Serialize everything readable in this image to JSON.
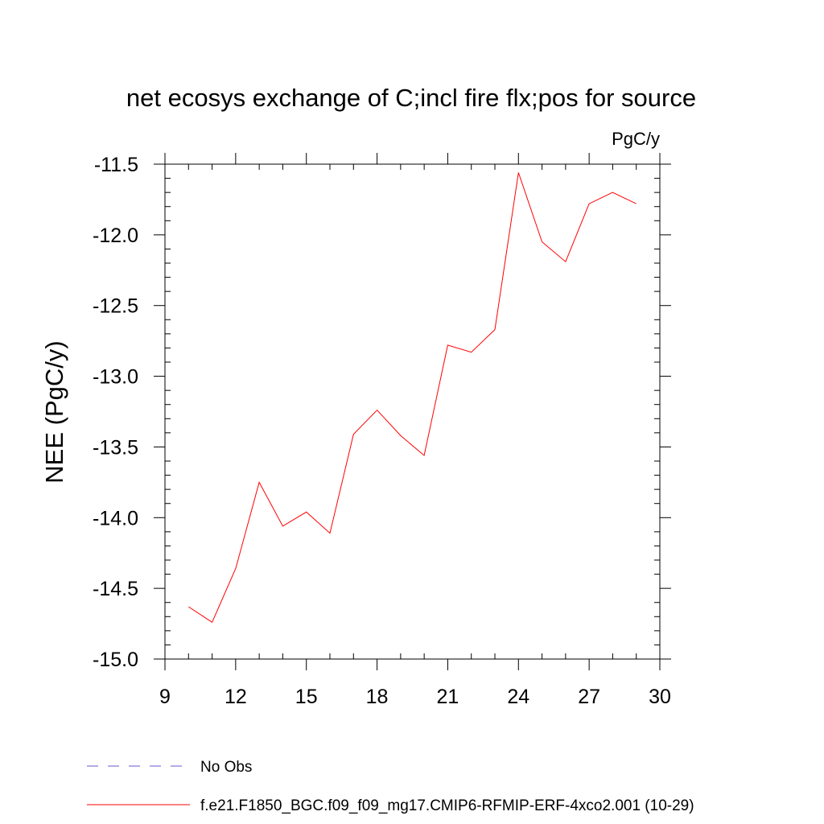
{
  "chart_data": {
    "type": "line",
    "title": "net ecosys exchange of C;incl fire flx;pos for source",
    "units_label": "PgC/y",
    "ylabel": "NEE  (PgC/y)",
    "xlabel": "",
    "xlim": [
      9,
      30
    ],
    "ylim": [
      -15.0,
      -11.5
    ],
    "x_ticks": [
      9,
      12,
      15,
      18,
      21,
      24,
      27,
      30
    ],
    "x_tick_labels": [
      "9",
      "12",
      "15",
      "18",
      "21",
      "24",
      "27",
      "30"
    ],
    "y_ticks": [
      -15.0,
      -14.5,
      -14.0,
      -13.5,
      -13.0,
      -12.5,
      -12.0,
      -11.5
    ],
    "y_tick_labels": [
      "-15.0",
      "-14.5",
      "-14.0",
      "-13.5",
      "-13.0",
      "-12.5",
      "-12.0",
      "-11.5"
    ],
    "grid": false,
    "series": [
      {
        "name": "f.e21.F1850_BGC.f09_f09_mg17.CMIP6-RFMIP-ERF-4xco2.001 (10-29)",
        "color": "#ff0000",
        "x": [
          10,
          11,
          12,
          13,
          14,
          15,
          16,
          17,
          18,
          19,
          20,
          21,
          22,
          23,
          24,
          25,
          26,
          27,
          28,
          29
        ],
        "values": [
          -14.63,
          -14.74,
          -14.36,
          -13.75,
          -14.06,
          -13.96,
          -14.11,
          -13.41,
          -13.24,
          -13.42,
          -13.56,
          -12.78,
          -12.83,
          -12.67,
          -11.56,
          -12.05,
          -12.19,
          -11.78,
          -11.7,
          -11.78
        ]
      }
    ],
    "legend": {
      "placement": "bottom-left",
      "entries": [
        {
          "label": "No Obs",
          "style": "dashed",
          "color": "#6a5acd"
        },
        {
          "label": "f.e21.F1850_BGC.f09_f09_mg17.CMIP6-RFMIP-ERF-4xco2.001 (10-29)",
          "style": "solid",
          "color": "#ff0000"
        }
      ]
    }
  }
}
